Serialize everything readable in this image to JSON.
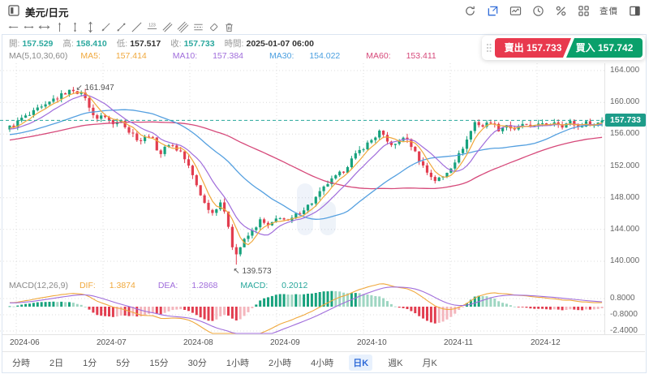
{
  "header": {
    "symbol": "美元/日元",
    "check_price_label": "查價"
  },
  "toolbar": {
    "tools": [
      "horizontal-ray",
      "horizontal-segment",
      "horizontal-line",
      "vertical-ray",
      "vertical-segment",
      "vertical-line",
      "trend-ray",
      "trend-segment",
      "trend-line",
      "price-label-line",
      "parallel-channel",
      "multi-line-channel",
      "horizontal-levels",
      "eraser",
      "trash"
    ]
  },
  "info_bar": {
    "open_label": "開:",
    "open": "157.529",
    "high_label": "高:",
    "high": "158.410",
    "low_label": "低:",
    "low": "157.517",
    "close_label": "收:",
    "close": "157.733",
    "time_label": "時間:",
    "time": "2025-01-07 06:00"
  },
  "ma_bar": {
    "group_label": "MA(5,10,30,60)",
    "ma5_label": "MA5:",
    "ma5": "157.414",
    "ma10_label": "MA10:",
    "ma10": "157.384",
    "ma30_label": "MA30:",
    "ma30": "154.022",
    "ma60_label": "MA60:",
    "ma60": "153.411"
  },
  "macd_bar": {
    "group_label": "MACD(12,26,9)",
    "dif_label": "DIF:",
    "dif": "1.3874",
    "dea_label": "DEA:",
    "dea": "1.2868",
    "macd_label": "MACD:",
    "macd": "0.2012"
  },
  "trade": {
    "sell_label": "賣出",
    "sell_price": "157.733",
    "buy_label": "買入",
    "buy_price": "157.742"
  },
  "timeframes": [
    {
      "label": "分時"
    },
    {
      "label": "2日"
    },
    {
      "label": "1分"
    },
    {
      "label": "5分"
    },
    {
      "label": "15分"
    },
    {
      "label": "30分"
    },
    {
      "label": "1小時"
    },
    {
      "label": "2小時"
    },
    {
      "label": "4小時"
    },
    {
      "label": "日K",
      "active": true
    },
    {
      "label": "週K"
    },
    {
      "label": "月K"
    }
  ],
  "chart_data": {
    "type": "candlestick",
    "symbol": "美元/日元",
    "interval": "日K",
    "price_axis_ticks": [
      "164.000",
      "160.000",
      "156.000",
      "152.000",
      "148.000",
      "144.000",
      "140.000"
    ],
    "macd_axis_ticks": [
      "0.8000",
      "-0.8000",
      "-2.4000"
    ],
    "x_axis_months": [
      "2024-06",
      "2024-07",
      "2024-08",
      "2024-09",
      "2024-10",
      "2024-11",
      "2024-12"
    ],
    "current_price": 157.733,
    "current_price_label": "157.733",
    "annotations": {
      "high_label": "161.947",
      "low_label": "139.573",
      "high_value": 161.947,
      "low_value": 139.573
    },
    "ohlc_last": {
      "open": 157.529,
      "high": 158.41,
      "low": 157.517,
      "close": 157.733,
      "time": "2025-01-07 06:00"
    },
    "ma_values": {
      "ma5": 157.414,
      "ma10": 157.384,
      "ma30": 154.022,
      "ma60": 153.411
    },
    "macd_values": {
      "dif": 1.3874,
      "dea": 1.2868,
      "macd": 0.2012
    },
    "colors": {
      "up": "#17a27d",
      "up_light": "#9ed6c2",
      "down": "#e23d4f",
      "down_light": "#f4b6bd",
      "ma5": "#f0a83c",
      "ma10": "#a06ddb",
      "ma30": "#55a0e0",
      "ma60": "#d6497a",
      "current_price": "#26a69a",
      "sell": "#e8394e",
      "buy": "#0aa06b",
      "active_tab": "#2f6bd8"
    },
    "close_keypoints": [
      [
        -60,
        152.6
      ],
      [
        -48,
        154.2
      ],
      [
        -36,
        155.9
      ],
      [
        -24,
        155.1
      ],
      [
        -12,
        156.3
      ],
      [
        -1,
        156.7
      ],
      [
        0,
        156.9
      ],
      [
        4,
        158.2
      ],
      [
        8,
        159.3
      ],
      [
        12,
        160.6
      ],
      [
        14,
        161.2
      ],
      [
        16,
        161.6
      ],
      [
        18,
        161.0
      ],
      [
        19,
        160.7
      ],
      [
        20,
        159.2
      ],
      [
        22,
        158.0
      ],
      [
        24,
        158.3
      ],
      [
        26,
        157.2
      ],
      [
        28,
        157.9
      ],
      [
        30,
        156.3
      ],
      [
        33,
        155.2
      ],
      [
        35,
        155.9
      ],
      [
        38,
        153.6
      ],
      [
        40,
        154.8
      ],
      [
        43,
        153.8
      ],
      [
        45,
        151.9
      ],
      [
        47,
        149.6
      ],
      [
        49,
        147.3
      ],
      [
        51,
        146.1
      ],
      [
        53,
        147.5
      ],
      [
        55,
        144.5
      ],
      [
        56,
        142.0
      ],
      [
        57,
        140.9
      ],
      [
        58,
        141.8
      ],
      [
        59,
        142.6
      ],
      [
        61,
        143.8
      ],
      [
        63,
        145.1
      ],
      [
        65,
        144.4
      ],
      [
        68,
        145.6
      ],
      [
        70,
        144.9
      ],
      [
        72,
        145.8
      ],
      [
        74,
        146.6
      ],
      [
        76,
        147.4
      ],
      [
        78,
        148.6
      ],
      [
        80,
        149.8
      ],
      [
        82,
        150.6
      ],
      [
        84,
        151.4
      ],
      [
        86,
        152.8
      ],
      [
        88,
        153.9
      ],
      [
        90,
        154.8
      ],
      [
        92,
        155.7
      ],
      [
        93,
        156.3
      ],
      [
        95,
        155.0
      ],
      [
        97,
        154.6
      ],
      [
        99,
        155.7
      ],
      [
        101,
        154.6
      ],
      [
        103,
        152.8
      ],
      [
        105,
        151.2
      ],
      [
        107,
        150.2
      ],
      [
        109,
        150.6
      ],
      [
        111,
        151.9
      ],
      [
        113,
        153.4
      ],
      [
        115,
        155.3
      ],
      [
        117,
        157.5
      ],
      [
        119,
        157.0
      ],
      [
        121,
        157.6
      ],
      [
        123,
        156.6
      ],
      [
        125,
        157.2
      ],
      [
        127,
        156.4
      ],
      [
        129,
        157.3
      ],
      [
        131,
        156.7
      ],
      [
        133,
        157.5
      ],
      [
        135,
        156.9
      ],
      [
        137,
        157.6
      ],
      [
        139,
        157.1
      ],
      [
        141,
        157.5
      ],
      [
        143,
        156.9
      ],
      [
        145,
        157.4
      ],
      [
        147,
        157.2
      ],
      [
        149,
        157.733
      ]
    ]
  }
}
